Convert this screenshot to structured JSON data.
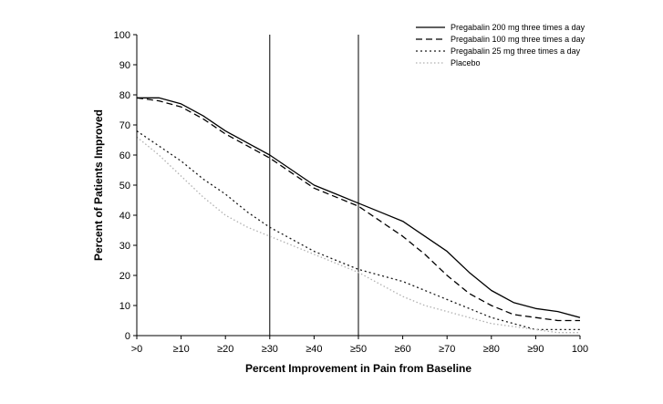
{
  "figure": {
    "background": "#ffffff",
    "accent_color": "#000000"
  },
  "chart_data": {
    "type": "line",
    "title": "",
    "xlabel": "Percent Improvement in Pain from Baseline",
    "ylabel": "Percent of Patients Improved",
    "xlim": [
      0,
      100
    ],
    "ylim": [
      0,
      100
    ],
    "grid": false,
    "legend_position": "top-right",
    "x_tick_values": [
      0,
      10,
      20,
      30,
      40,
      50,
      60,
      70,
      80,
      90,
      100
    ],
    "x_tick_labels": [
      ">0",
      "≥10",
      "≥20",
      "≥30",
      "≥40",
      "≥50",
      "≥60",
      "≥70",
      "≥80",
      "≥90",
      "100"
    ],
    "y_tick_values": [
      0,
      10,
      20,
      30,
      40,
      50,
      60,
      70,
      80,
      90,
      100
    ],
    "reference_lines_x": [
      30,
      50
    ],
    "x": [
      0,
      5,
      10,
      15,
      20,
      25,
      30,
      35,
      40,
      45,
      50,
      55,
      60,
      65,
      70,
      75,
      80,
      85,
      90,
      95,
      100
    ],
    "series": [
      {
        "name": "Pregabalin 200 mg three times a day",
        "color": "#000000",
        "dash": "",
        "values": [
          79,
          79,
          77,
          73,
          68,
          64,
          60,
          55,
          50,
          47,
          44,
          41,
          38,
          33,
          28,
          21,
          15,
          11,
          9,
          8,
          6
        ]
      },
      {
        "name": "Pregabalin 100 mg three times a day",
        "color": "#000000",
        "dash": "7 4",
        "values": [
          79,
          78,
          76,
          72,
          67,
          63,
          59,
          54,
          49,
          46,
          43,
          38,
          33,
          27,
          20,
          14,
          10,
          7,
          6,
          5,
          5
        ]
      },
      {
        "name": "Pregabalin 25 mg three times a day",
        "color": "#1a1a1a",
        "dash": "2 3",
        "values": [
          68,
          63,
          58,
          52,
          47,
          41,
          36,
          32,
          28,
          25,
          22,
          20,
          18,
          15,
          12,
          9,
          6,
          4,
          2,
          2,
          2
        ]
      },
      {
        "name": "Placebo",
        "color": "#b0b0b0",
        "dash": "1.5 2.5",
        "values": [
          66,
          60,
          53,
          46,
          40,
          36,
          33,
          30,
          27,
          24,
          21,
          17,
          13,
          10,
          8,
          6,
          4,
          3,
          2,
          1,
          1
        ]
      }
    ]
  }
}
